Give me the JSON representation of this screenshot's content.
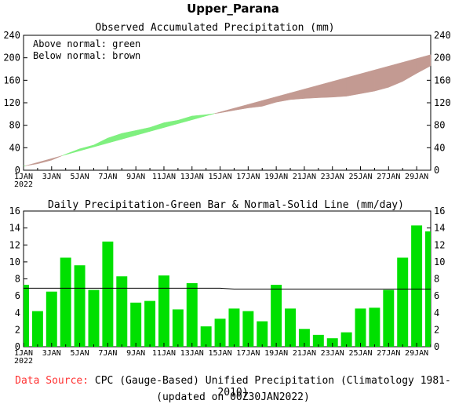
{
  "header": {
    "title": "Upper_Parana"
  },
  "footer": {
    "source_label": "Data Source:",
    "source_text": "CPC (Gauge-Based) Unified Precipitation (Climatology 1981-2010)",
    "updated": "(updated on 00Z30JAN2022)"
  },
  "colors": {
    "above": "#7ff07f",
    "below": "#c39a92",
    "bar": "#00e000",
    "normal_line": "#000000",
    "label_red": "#ff3333"
  },
  "chart_data": [
    {
      "type": "area",
      "title": "Observed Accumulated Precipitation (mm)",
      "legend": [
        "Above normal: green",
        "Below normal: brown"
      ],
      "legend_position": "top-left",
      "x": [
        "1JAN",
        "2JAN",
        "3JAN",
        "4JAN",
        "5JAN",
        "6JAN",
        "7JAN",
        "8JAN",
        "9JAN",
        "10JAN",
        "11JAN",
        "12JAN",
        "13JAN",
        "14JAN",
        "15JAN",
        "16JAN",
        "17JAN",
        "18JAN",
        "19JAN",
        "20JAN",
        "21JAN",
        "22JAN",
        "23JAN",
        "24JAN",
        "25JAN",
        "26JAN",
        "27JAN",
        "28JAN",
        "29JAN",
        "30JAN"
      ],
      "x_tick_labels": [
        "1JAN",
        "3JAN",
        "5JAN",
        "7JAN",
        "9JAN",
        "11JAN",
        "13JAN",
        "15JAN",
        "17JAN",
        "19JAN",
        "21JAN",
        "23JAN",
        "25JAN",
        "27JAN",
        "29JAN"
      ],
      "x_year_label": "2022",
      "series": [
        {
          "name": "Observed",
          "values": [
            7.3,
            11.5,
            18,
            28.5,
            38.1,
            44.8,
            57.2,
            65.5,
            70.7,
            76.1,
            84.5,
            88.9,
            96.4,
            98.8,
            102.1,
            106.6,
            110.8,
            113.8,
            121.1,
            125.6,
            127.6,
            129,
            130,
            131.7,
            136.2,
            140.8,
            147.5,
            158,
            172.3,
            185.7
          ]
        },
        {
          "name": "Normal",
          "values": [
            6.9,
            13.8,
            20.7,
            27.6,
            34.5,
            41.4,
            48.3,
            55.2,
            62.1,
            69,
            75.9,
            82.8,
            89.7,
            96.6,
            103.5,
            110.3,
            117.1,
            123.9,
            130.7,
            137.5,
            144.3,
            151.1,
            157.9,
            164.7,
            171.5,
            178.3,
            185.1,
            191.9,
            198.7,
            205.5
          ]
        }
      ],
      "ylim": [
        0,
        240
      ],
      "yticks": [
        0,
        40,
        80,
        120,
        160,
        200,
        240
      ]
    },
    {
      "type": "bar",
      "title": "Daily Precipitation-Green Bar & Normal-Solid Line (mm/day)",
      "x": [
        "1JAN",
        "2JAN",
        "3JAN",
        "4JAN",
        "5JAN",
        "6JAN",
        "7JAN",
        "8JAN",
        "9JAN",
        "10JAN",
        "11JAN",
        "12JAN",
        "13JAN",
        "14JAN",
        "15JAN",
        "16JAN",
        "17JAN",
        "18JAN",
        "19JAN",
        "20JAN",
        "21JAN",
        "22JAN",
        "23JAN",
        "24JAN",
        "25JAN",
        "26JAN",
        "27JAN",
        "28JAN",
        "29JAN",
        "30JAN"
      ],
      "x_tick_labels": [
        "1JAN",
        "3JAN",
        "5JAN",
        "7JAN",
        "9JAN",
        "11JAN",
        "13JAN",
        "15JAN",
        "17JAN",
        "19JAN",
        "21JAN",
        "23JAN",
        "25JAN",
        "27JAN",
        "29JAN"
      ],
      "x_year_label": "2022",
      "series": [
        {
          "name": "Daily Precipitation",
          "values": [
            7.3,
            4.2,
            6.5,
            10.5,
            9.6,
            6.7,
            12.4,
            8.3,
            5.2,
            5.4,
            8.4,
            4.4,
            7.5,
            2.4,
            3.3,
            4.5,
            4.2,
            3.0,
            7.3,
            4.5,
            2.1,
            1.4,
            1.0,
            1.7,
            4.5,
            4.6,
            6.7,
            10.5,
            14.3,
            13.6
          ]
        },
        {
          "name": "Normal",
          "values": [
            6.9,
            6.9,
            6.9,
            6.9,
            6.9,
            6.9,
            6.9,
            6.9,
            6.9,
            6.9,
            6.9,
            6.9,
            6.9,
            6.9,
            6.9,
            6.8,
            6.8,
            6.8,
            6.8,
            6.8,
            6.8,
            6.8,
            6.8,
            6.8,
            6.8,
            6.8,
            6.8,
            6.8,
            6.8,
            6.8
          ]
        }
      ],
      "ylim": [
        0,
        16
      ],
      "yticks": [
        0,
        2,
        4,
        6,
        8,
        10,
        12,
        14,
        16
      ]
    }
  ]
}
